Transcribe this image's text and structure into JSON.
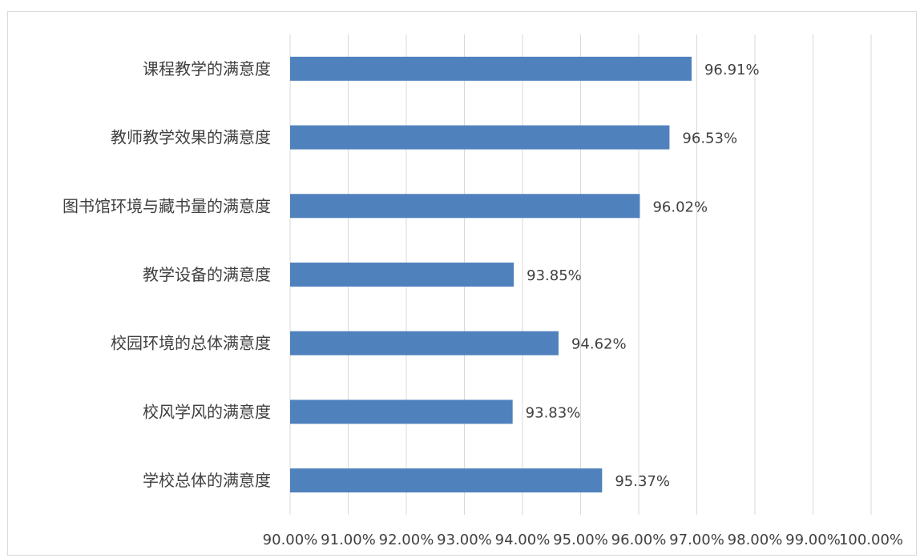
{
  "chart_data": {
    "type": "bar",
    "orientation": "horizontal",
    "categories": [
      "课程教学的满意度",
      "教师教学效果的满意度",
      "图书馆环境与藏书量的满意度",
      "教学设备的满意度",
      "校园环境的总体满意度",
      "校风学风的满意度",
      "学校总体的满意度"
    ],
    "values": [
      96.91,
      96.53,
      96.02,
      93.85,
      94.62,
      93.83,
      95.37
    ],
    "data_labels": [
      "96.91%",
      "96.53%",
      "96.02%",
      "93.85%",
      "94.62%",
      "93.83%",
      "95.37%"
    ],
    "xlim": [
      90,
      100
    ],
    "x_ticks": [
      90,
      91,
      92,
      93,
      94,
      95,
      96,
      97,
      98,
      99,
      100
    ],
    "x_tick_labels": [
      "90.00%",
      "91.00%",
      "92.00%",
      "93.00%",
      "94.00%",
      "95.00%",
      "96.00%",
      "97.00%",
      "98.00%",
      "99.00%",
      "100.00%"
    ],
    "grid": "vertical",
    "legend": "none",
    "bar_color": "#4f81bd",
    "grid_color": "#d9d9d9"
  }
}
